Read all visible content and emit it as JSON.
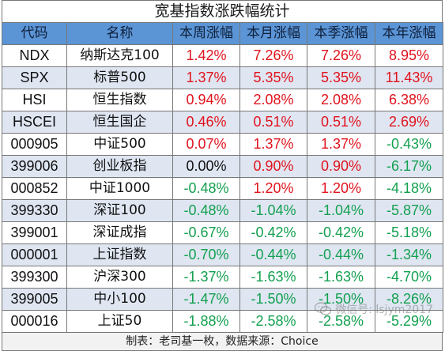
{
  "title": "宽基指数涨跌幅统计",
  "headers": [
    "代码",
    "名称",
    "本周涨幅",
    "本月涨幅",
    "本季涨幅",
    "本年涨幅"
  ],
  "rows": [
    {
      "code": "NDX",
      "name": "纳斯达克100",
      "week": "1.42%",
      "month": "7.26%",
      "quarter": "7.26%",
      "year": "8.95%"
    },
    {
      "code": "SPX",
      "name": "标普500",
      "week": "1.37%",
      "month": "5.35%",
      "quarter": "5.35%",
      "year": "11.43%"
    },
    {
      "code": "HSI",
      "name": "恒生指数",
      "week": "0.94%",
      "month": "2.08%",
      "quarter": "2.08%",
      "year": "6.38%"
    },
    {
      "code": "HSCEI",
      "name": "恒生国企",
      "week": "0.46%",
      "month": "0.51%",
      "quarter": "0.51%",
      "year": "2.69%"
    },
    {
      "code": "000905",
      "name": "中证500",
      "week": "0.07%",
      "month": "1.37%",
      "quarter": "1.37%",
      "year": "-0.43%"
    },
    {
      "code": "399006",
      "name": "创业板指",
      "week": "0.00%",
      "month": "0.90%",
      "quarter": "0.90%",
      "year": "-6.17%"
    },
    {
      "code": "000852",
      "name": "中证1000",
      "week": "-0.48%",
      "month": "1.20%",
      "quarter": "1.20%",
      "year": "-4.18%"
    },
    {
      "code": "399330",
      "name": "深证100",
      "week": "-0.48%",
      "month": "-1.04%",
      "quarter": "-1.04%",
      "year": "-5.87%"
    },
    {
      "code": "399001",
      "name": "深证成指",
      "week": "-0.67%",
      "month": "-0.42%",
      "quarter": "-0.42%",
      "year": "-5.18%"
    },
    {
      "code": "000001",
      "name": "上证指数",
      "week": "-0.70%",
      "month": "-0.44%",
      "quarter": "-0.44%",
      "year": "-1.34%"
    },
    {
      "code": "399300",
      "name": "沪深300",
      "week": "-1.37%",
      "month": "-1.63%",
      "quarter": "-1.63%",
      "year": "-4.70%"
    },
    {
      "code": "399005",
      "name": "中小100",
      "week": "-1.47%",
      "month": "-1.50%",
      "quarter": "-1.50%",
      "year": "-8.26%"
    },
    {
      "code": "000016",
      "name": "上证50",
      "week": "-1.88%",
      "month": "-2.58%",
      "quarter": "-2.58%",
      "year": "-5.29%"
    }
  ],
  "footer": "制表：老司基一枚，数据来源：Choice",
  "watermark": "微信号: lsjym2017",
  "colors": {
    "header_bg": "#5b95d6",
    "positive": "#e0141e",
    "negative": "#13a050",
    "stripe": "#dfe6f2"
  }
}
